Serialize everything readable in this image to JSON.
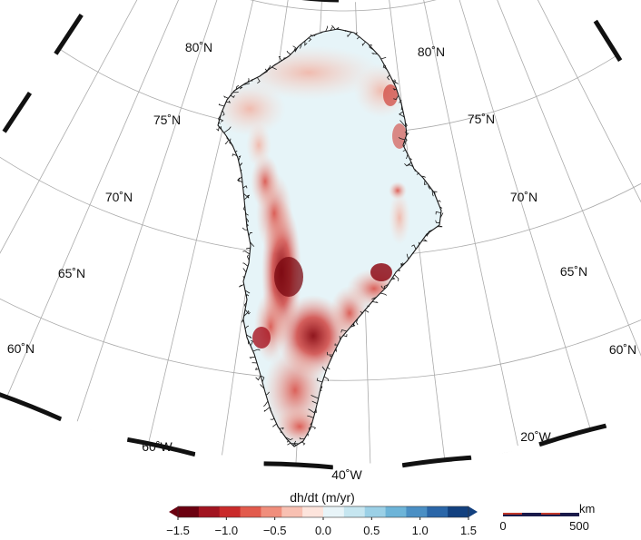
{
  "map": {
    "latitude_labels": [
      "80˚N",
      "75˚N",
      "70˚N",
      "65˚N",
      "60˚N"
    ],
    "longitude_labels": [
      "60˚W",
      "40˚W",
      "20˚W"
    ],
    "colors": {
      "coastline": "#1a1a1a",
      "graticule": "#aaaaaa",
      "ice_stable": "#e6f4f8",
      "thinning_light": "#f6b8a8",
      "thinning_mid": "#e05a4a",
      "thinning_strong": "#9a0f14"
    }
  },
  "colorbar": {
    "title": "dh/dt (m/yr)",
    "ticks": [
      "−1.5",
      "−1.0",
      "−0.5",
      "0.0",
      "0.5",
      "1.0",
      "1.5"
    ],
    "colors": [
      "#6b0010",
      "#a11420",
      "#c92a2a",
      "#e25a4c",
      "#f08e7c",
      "#f8c0b2",
      "#fde4dc",
      "#e8f4f8",
      "#c6e6f0",
      "#9bd0e6",
      "#6db4d8",
      "#4a8fc4",
      "#2a66a8",
      "#12407f"
    ]
  },
  "scalebar": {
    "unit": "km",
    "start_label": "0",
    "end_label": "500"
  }
}
